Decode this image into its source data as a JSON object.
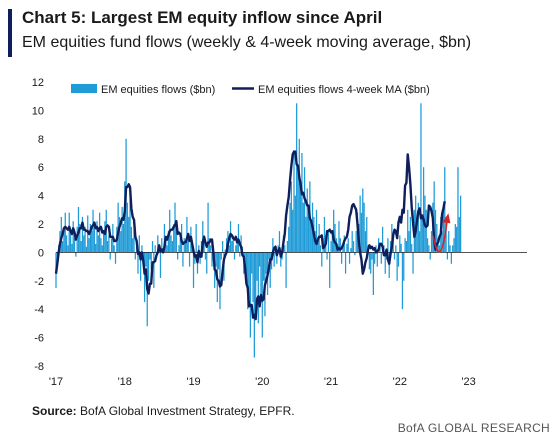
{
  "header": {
    "title": "Chart 5: Largest EM equity inflow since April",
    "subtitle": "EM equities fund flows (weekly & 4-week moving average, $bn)"
  },
  "footer": {
    "source_label": "Source:",
    "source_text": "BofA Global Investment Strategy, EPFR.",
    "brand": "BofA GLOBAL RESEARCH"
  },
  "colors": {
    "bars": "#1f9bd7",
    "ma_line": "#0f1f5c",
    "arrow": "#d9252a",
    "accent": "#0f1f5c"
  },
  "chart_data": {
    "type": "bar",
    "title": "Chart 5: Largest EM equity inflow since April",
    "subtitle": "EM equities fund flows (weekly & 4-week moving average, $bn)",
    "xlabel": "",
    "ylabel": "",
    "ylim": [
      -8,
      12
    ],
    "yticks": [
      -8,
      -6,
      -4,
      -2,
      0,
      2,
      4,
      6,
      8,
      10,
      12
    ],
    "xlim": [
      2017.0,
      2023.85
    ],
    "xticks": [
      {
        "label": "'17",
        "value": 2017.0
      },
      {
        "label": "'18",
        "value": 2018.0
      },
      {
        "label": "'19",
        "value": 2019.0
      },
      {
        "label": "'20",
        "value": 2020.0
      },
      {
        "label": "'21",
        "value": 2021.0
      },
      {
        "label": "'22",
        "value": 2022.0
      },
      {
        "label": "'23",
        "value": 2023.0
      }
    ],
    "legend_position": "top-left",
    "grid": false,
    "weeks_per_year": 52,
    "series": [
      {
        "name": "EM equities flows ($bn)",
        "type": "bar",
        "values": [
          -2.5,
          -1.0,
          0.5,
          1.5,
          2.5,
          0.8,
          1.8,
          2.8,
          1.2,
          0.5,
          2.8,
          1.5,
          0.6,
          2.2,
          1.0,
          -0.3,
          1.8,
          3.2,
          2.0,
          0.8,
          2.5,
          1.2,
          1.8,
          0.4,
          2.6,
          1.0,
          2.0,
          1.5,
          3.0,
          1.8,
          0.6,
          2.2,
          1.2,
          2.8,
          1.0,
          0.5,
          1.5,
          2.2,
          3.0,
          0.8,
          1.2,
          -0.5,
          1.0,
          2.0,
          0.5,
          -0.8,
          1.8,
          3.5,
          2.5,
          1.5,
          3.2,
          2.0,
          5.0,
          8.0,
          3.5,
          2.5,
          4.5,
          1.8,
          1.0,
          2.0,
          -0.5,
          0.8,
          -1.5,
          1.2,
          -2.0,
          0.5,
          -0.8,
          -3.5,
          -1.0,
          -5.2,
          -2.0,
          -0.5,
          -1.2,
          0.8,
          -2.5,
          0.5,
          -0.3,
          1.2,
          0.5,
          -1.8,
          1.0,
          0.3,
          2.0,
          1.0,
          0.5,
          1.5,
          3.0,
          1.2,
          0.8,
          2.0,
          3.5,
          2.0,
          -0.5,
          0.5,
          1.0,
          2.0,
          -1.0,
          1.0,
          0.6,
          2.5,
          1.2,
          -1.0,
          1.8,
          0.5,
          -2.5,
          -0.8,
          2.0,
          -1.5,
          0.5,
          -0.8,
          0.8,
          2.2,
          1.2,
          -0.5,
          -1.5,
          3.5,
          1.0,
          0.5,
          -1.0,
          -0.6,
          -2.5,
          -1.0,
          -3.5,
          -1.2,
          -4.0,
          -0.5,
          0.8,
          -2.0,
          0.2,
          1.0,
          1.5,
          0.5,
          2.2,
          0.8,
          1.2,
          -0.5,
          0.5,
          1.0,
          2.0,
          -0.3,
          1.2,
          0.4,
          -1.5,
          -0.8,
          -2.0,
          -4.0,
          -3.2,
          -6.0,
          -1.5,
          -3.5,
          -7.4,
          -4.5,
          -2.0,
          -5.0,
          -1.0,
          -3.0,
          -6.0,
          -2.0,
          -4.5,
          -1.5,
          -3.0,
          -0.5,
          -2.5,
          -1.2,
          1.0,
          -1.0,
          0.5,
          -0.8,
          0.5,
          1.5,
          -1.0,
          -0.5,
          1.2,
          0.5,
          -2.5,
          0.8,
          1.8,
          3.5,
          5.0,
          3.0,
          7.0,
          4.0,
          10.5,
          6.0,
          8.0,
          4.5,
          7.0,
          3.5,
          6.0,
          2.5,
          4.5,
          3.0,
          5.0,
          2.0,
          3.5,
          2.5,
          1.5,
          3.0,
          0.8,
          2.0,
          0.5,
          -1.0,
          1.0,
          2.5,
          1.2,
          -0.5,
          1.5,
          -2.5,
          0.8,
          1.5,
          3.0,
          2.0,
          1.0,
          0.5,
          2.2,
          1.0,
          -0.8,
          0.5,
          1.2,
          -1.5,
          0.6,
          1.0,
          -0.8,
          0.3,
          1.5,
          0.8,
          -0.2,
          1.5,
          2.8,
          2.0,
          4.0,
          2.8,
          4.5,
          3.5,
          1.5,
          2.5,
          0.5,
          -1.2,
          -1.5,
          -0.5,
          -3.0,
          -0.8,
          0.5,
          -1.0,
          1.0,
          0.5,
          -0.8,
          1.8,
          0.5,
          -1.5,
          -0.5,
          1.0,
          -1.8,
          0.8,
          2.0,
          1.2,
          -0.5,
          0.5,
          -2.0,
          -1.0,
          1.2,
          0.6,
          -4.0,
          -2.0,
          1.0,
          0.8,
          3.0,
          1.5,
          2.5,
          0.6,
          -1.5,
          3.0,
          4.0,
          2.0,
          3.5,
          1.5,
          10.5,
          2.5,
          6.0,
          4.0,
          3.0,
          1.0,
          0.5,
          -0.5,
          1.5,
          3.5,
          5.0,
          3.0,
          2.0,
          1.0,
          0.5,
          2.5,
          1.5,
          3.0,
          6.0,
          2.5,
          -0.5,
          1.5,
          0.5,
          -0.8,
          0.5,
          1.0,
          2.0,
          1.8,
          6.0,
          2.5,
          4.0
        ]
      },
      {
        "name": "EM equities flows 4-week MA ($bn)",
        "type": "line",
        "values": [
          -1.5,
          -0.8,
          0.0,
          0.6,
          1.0,
          1.3,
          1.7,
          1.8,
          1.7,
          1.6,
          1.8,
          1.5,
          1.3,
          1.7,
          1.4,
          0.9,
          1.2,
          1.4,
          1.7,
          1.7,
          2.1,
          1.6,
          1.6,
          1.5,
          1.5,
          1.3,
          1.5,
          1.8,
          1.9,
          2.1,
          1.7,
          1.8,
          1.5,
          1.7,
          1.8,
          1.4,
          1.5,
          1.3,
          1.8,
          1.9,
          1.8,
          1.1,
          1.1,
          1.1,
          0.8,
          0.8,
          0.9,
          1.4,
          1.8,
          2.1,
          2.4,
          2.3,
          2.9,
          4.6,
          4.6,
          4.8,
          4.6,
          3.1,
          2.5,
          2.3,
          1.1,
          0.8,
          -0.1,
          0.0,
          -0.5,
          0.0,
          -0.6,
          -1.5,
          -1.2,
          -2.6,
          -2.9,
          -2.2,
          -2.2,
          -0.7,
          -0.7,
          -0.6,
          -0.2,
          0.0,
          0.5,
          0.1,
          0.2,
          0.0,
          0.4,
          1.1,
          0.9,
          1.2,
          1.5,
          1.6,
          1.6,
          1.8,
          1.9,
          2.2,
          1.3,
          1.4,
          1.3,
          0.8,
          0.6,
          0.7,
          0.7,
          1.0,
          1.3,
          0.8,
          1.1,
          0.6,
          0.1,
          -0.3,
          -0.2,
          -0.7,
          0.1,
          -0.3,
          -0.3,
          0.7,
          1.1,
          0.7,
          0.4,
          0.7,
          0.7,
          0.9,
          0.9,
          0.0,
          -1.2,
          -1.3,
          -1.9,
          -2.0,
          -2.4,
          -2.3,
          -1.3,
          -0.5,
          -0.2,
          0.0,
          0.6,
          1.0,
          1.3,
          1.2,
          1.0,
          0.9,
          1.1,
          0.7,
          0.9,
          0.6,
          0.4,
          -0.2,
          -0.3,
          -1.1,
          -2.2,
          -2.5,
          -3.8,
          -3.7,
          -3.7,
          -4.6,
          -4.4,
          -4.7,
          -3.3,
          -3.1,
          -3.8,
          -3.0,
          -3.4,
          -3.3,
          -2.3,
          -2.0,
          -1.6,
          -1.1,
          -0.5,
          -0.5,
          0.0,
          0.3,
          0.4,
          -0.2,
          0.1,
          0.3,
          -0.3,
          0.0,
          0.7,
          1.3,
          2.6,
          3.3,
          3.9,
          5.1,
          6.1,
          6.9,
          7.1,
          7.1,
          6.2,
          6.1,
          5.3,
          4.8,
          4.1,
          4.2,
          3.8,
          3.6,
          3.3,
          3.3,
          2.4,
          2.2,
          1.8,
          1.3,
          0.8,
          0.6,
          0.9,
          1.1,
          1.1,
          1.2,
          0.3,
          0.4,
          0.6,
          1.5,
          1.5,
          1.6,
          1.4,
          1.5,
          0.9,
          0.7,
          0.6,
          0.2,
          0.3,
          0.2,
          0.3,
          0.5,
          0.8,
          1.0,
          1.1,
          1.6,
          2.5,
          2.8,
          3.3,
          3.4,
          3.2,
          3.0,
          2.0,
          0.8,
          0.0,
          -0.5,
          -1.5,
          -1.2,
          -0.7,
          -0.4,
          0.2,
          0.5,
          0.3,
          0.4,
          0.2,
          0.3,
          0.0,
          0.1,
          0.2,
          0.6,
          0.6,
          0.4,
          -0.2,
          -0.2,
          0.2,
          -0.5,
          -0.8,
          -0.1,
          0.4,
          1.2,
          1.6,
          1.5,
          1.0,
          2.1,
          2.5,
          2.1,
          3.0,
          2.8,
          4.7,
          4.9,
          6.9,
          6.0,
          4.8,
          3.2,
          2.1,
          1.1,
          1.5,
          2.2,
          2.9,
          3.1,
          2.4,
          2.6,
          2.3,
          1.9,
          1.8,
          1.9,
          3.3,
          3.2,
          2.9,
          2.4,
          0.8,
          0.2,
          0.6,
          0.7,
          1.1,
          1.3,
          2.7,
          3.1,
          3.6
        ]
      }
    ],
    "annotations": [
      {
        "type": "arrow",
        "description": "upturn",
        "color": "#d9252a"
      }
    ]
  }
}
